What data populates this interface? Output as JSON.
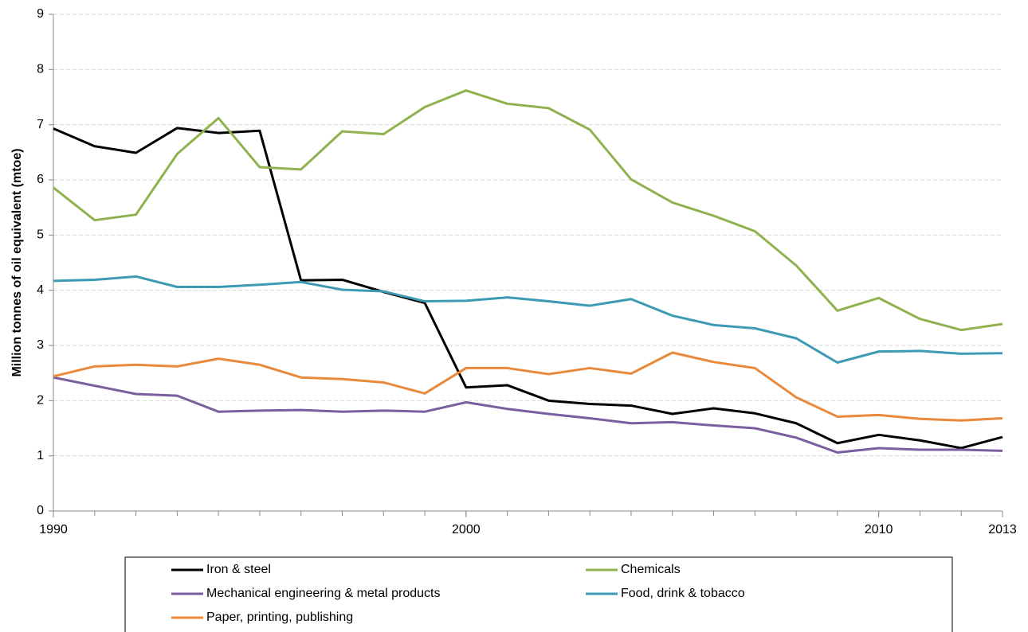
{
  "chart_data": {
    "type": "line",
    "ylabel": "Million tonnes of oil equivalent (mtoe)",
    "x": [
      1990,
      1991,
      1992,
      1993,
      1994,
      1995,
      1996,
      1997,
      1998,
      1999,
      2000,
      2001,
      2002,
      2003,
      2004,
      2005,
      2006,
      2007,
      2008,
      2009,
      2010,
      2011,
      2012,
      2013
    ],
    "xlim": [
      1990,
      2013
    ],
    "xticks": [
      1990,
      2000,
      2010,
      2013
    ],
    "ylim": [
      0,
      9
    ],
    "yticks": [
      0,
      1,
      2,
      3,
      4,
      5,
      6,
      7,
      8,
      9
    ],
    "grid": true,
    "legend": "bottom",
    "series": [
      {
        "name": "Iron & steel",
        "color": "#000000",
        "values": [
          6.93,
          6.61,
          6.49,
          6.94,
          6.85,
          6.89,
          4.18,
          4.19,
          3.97,
          3.77,
          2.24,
          2.28,
          2.0,
          1.94,
          1.91,
          1.76,
          1.86,
          1.77,
          1.59,
          1.23,
          1.38,
          1.28,
          1.14,
          1.34
        ]
      },
      {
        "name": "Chemicals",
        "color": "#8fb24f",
        "values": [
          5.86,
          5.27,
          5.37,
          6.47,
          7.12,
          6.23,
          6.19,
          6.88,
          6.83,
          7.32,
          7.62,
          7.38,
          7.3,
          6.91,
          6.01,
          5.59,
          5.35,
          5.07,
          4.45,
          3.63,
          3.86,
          3.48,
          3.28,
          3.39
        ]
      },
      {
        "name": "Mechanical engineering & metal products",
        "color": "#7b5ea0",
        "values": [
          2.42,
          2.27,
          2.12,
          2.09,
          1.8,
          1.82,
          1.83,
          1.8,
          1.82,
          1.8,
          1.97,
          1.85,
          1.76,
          1.68,
          1.59,
          1.61,
          1.55,
          1.5,
          1.33,
          1.06,
          1.14,
          1.11,
          1.11,
          1.09
        ]
      },
      {
        "name": "Food, drink & tobacco",
        "color": "#3d9ab5",
        "values": [
          4.17,
          4.19,
          4.25,
          4.06,
          4.06,
          4.1,
          4.15,
          4.01,
          3.98,
          3.8,
          3.81,
          3.87,
          3.8,
          3.72,
          3.84,
          3.54,
          3.37,
          3.31,
          3.13,
          2.69,
          2.89,
          2.9,
          2.85,
          2.86
        ]
      },
      {
        "name": "Paper, printing, publishing",
        "color": "#e8893c",
        "values": [
          2.44,
          2.62,
          2.65,
          2.62,
          2.76,
          2.65,
          2.42,
          2.39,
          2.33,
          2.13,
          2.59,
          2.59,
          2.48,
          2.59,
          2.49,
          2.87,
          2.7,
          2.59,
          2.06,
          1.71,
          1.74,
          1.67,
          1.64,
          1.68
        ]
      }
    ]
  }
}
